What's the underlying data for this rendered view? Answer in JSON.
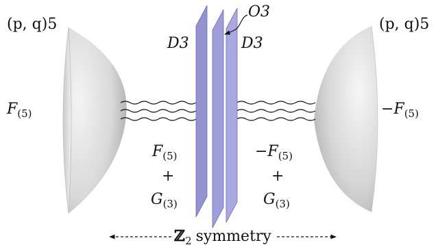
{
  "labels": {
    "left_brane_pq": "(p, q)5",
    "right_brane_pq": "(p, q)5",
    "left_flux": "F",
    "left_flux_sub": "(5)",
    "right_flux": "−F",
    "right_flux_sub": "(5)",
    "o3": "O3",
    "d3_left": "D3",
    "d3_right": "D3",
    "mid_left_f": "F",
    "mid_left_f_sub": "(5)",
    "mid_left_plus": "+",
    "mid_left_g": "G",
    "mid_left_g_sub": "(3)",
    "mid_right_f": "−F",
    "mid_right_f_sub": "(5)",
    "mid_right_plus": "+",
    "mid_right_g": "G",
    "mid_right_g_sub": "(3)",
    "symmetry_symbol": "ℤ",
    "symmetry_sub": "2",
    "symmetry_word": "symmetry"
  },
  "colors": {
    "plate_fill": "#9a9ad8",
    "plate_edge": "#7474c0",
    "brane_light": "#f2f2f2",
    "brane_dark": "#b5b5b5",
    "ink": "#111111"
  }
}
